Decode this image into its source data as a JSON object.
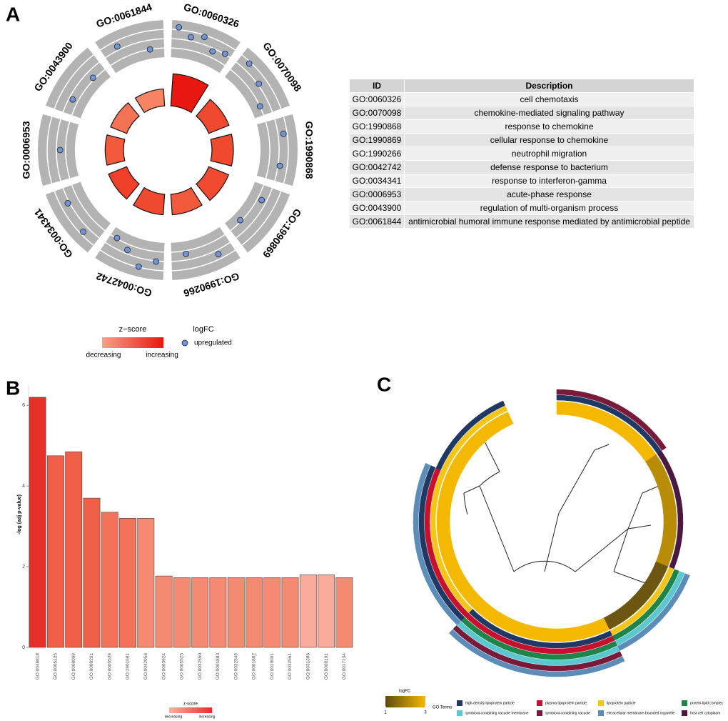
{
  "panels": [
    "A",
    "B",
    "C"
  ],
  "chart_data": [
    {
      "type": "gocircle",
      "terms": [
        "GO:0060326",
        "GO:0070098",
        "GO:1990868",
        "GO:1990869",
        "GO:1990266",
        "GO:0042742",
        "GO:0034341",
        "GO:0006953",
        "GO:0043900",
        "GO:0061844"
      ],
      "values": [
        7.2,
        4.9,
        4.8,
        4.8,
        4.6,
        4.6,
        4.4,
        4.1,
        3.9,
        3.8
      ],
      "ylim": [
        0,
        8
      ],
      "colors": [
        "#e8170f",
        "#f0492f",
        "#f0492f",
        "#f24a30",
        "#f35a3c",
        "#ef4a2f",
        "#f0402a",
        "#f35a3c",
        "#f47355",
        "#f88466"
      ],
      "logfc": [
        [
          4.9,
          3.6,
          4.2,
          2.5,
          3.1
        ],
        [
          4.2,
          3.2,
          1.5
        ],
        [
          3.9,
          3.3
        ],
        [
          2.2,
          1.3
        ],
        [
          3.7,
          2.0
        ],
        [
          3.1,
          4.4,
          2.4,
          1.4
        ],
        [
          4.0,
          3.3
        ],
        [
          2.4
        ],
        [
          2.4,
          1.8
        ],
        [
          3.6,
          1.5
        ]
      ],
      "logfc_lim": [
        0,
        6
      ],
      "legend": {
        "zscore_title": "z−score",
        "zscore_low": "decreasing",
        "zscore_high": "increasing",
        "zscore_colors": [
          "#f8a08a",
          "#e8170f"
        ],
        "logfc_title": "logFC",
        "logfc_label": "upregulated",
        "point_color": "#6f95d8"
      }
    },
    {
      "type": "bar",
      "categories": [
        "GO:0048818",
        "GO:0005125",
        "GO:0008009",
        "GO:0008201",
        "GO:0005539",
        "GO:1901681",
        "GO:0042056",
        "GO:0003924",
        "GO:0005525",
        "GO:0032550",
        "GO:0001883",
        "GO:0032549",
        "GO:0001882",
        "GO:0019001",
        "GO:0032561",
        "GO:0031386",
        "GO:0008191",
        "GO:0017134"
      ],
      "values": [
        6.2,
        4.75,
        4.85,
        3.7,
        3.35,
        3.2,
        3.2,
        1.77,
        1.73,
        1.73,
        1.73,
        1.73,
        1.73,
        1.73,
        1.73,
        1.8,
        1.8,
        1.73
      ],
      "colors": [
        "#e8302a",
        "#f06048",
        "#f06048",
        "#f06048",
        "#f2725a",
        "#f2725a",
        "#f58a72",
        "#f58a72",
        "#f58a72",
        "#f58a72",
        "#f58a72",
        "#f58a72",
        "#f58a72",
        "#f58a72",
        "#f58a72",
        "#f8ab9a",
        "#f8ab9a",
        "#f58a72"
      ],
      "ylim": [
        0,
        6.5
      ],
      "yticks": [
        0,
        2,
        4,
        6
      ],
      "ylabel": "-log (adj p-value)",
      "legend": {
        "title": "z-score",
        "low": "decreasing",
        "high": "increasing",
        "colors": [
          "#f8b0a0",
          "#ee2b2b"
        ]
      }
    },
    {
      "type": "gocluster",
      "logfc": [
        3,
        3,
        3,
        3,
        2.2,
        2.2,
        2.2,
        2.2,
        1.2,
        1.2,
        1.2,
        3,
        3,
        3,
        3,
        3,
        3,
        3,
        3,
        3,
        3,
        3,
        3,
        3
      ],
      "membership": [
        [
          0,
          5
        ],
        [
          0,
          5
        ],
        [
          0,
          5
        ],
        [
          0,
          5
        ],
        [
          7
        ],
        [
          7
        ],
        [
          7
        ],
        [
          7
        ],
        [
          2,
          3,
          4,
          6
        ],
        [
          2,
          3,
          4,
          6
        ],
        [
          2,
          3,
          4,
          6
        ],
        [
          0,
          1,
          3,
          4,
          5,
          6
        ],
        [
          0,
          1,
          3,
          4,
          5,
          6
        ],
        [
          0,
          1,
          3,
          4,
          5,
          6
        ],
        [
          0,
          1,
          3,
          4,
          5,
          6
        ],
        [
          0,
          1,
          3,
          4,
          5,
          6
        ],
        [
          2,
          1,
          0,
          6
        ],
        [
          2,
          1,
          0,
          6
        ],
        [
          2,
          1,
          0,
          6
        ],
        [
          2,
          1,
          0,
          6
        ],
        [
          2,
          1,
          0,
          6
        ],
        [
          2,
          0
        ],
        [
          2,
          0
        ],
        [
          2,
          0
        ]
      ],
      "logfc_lim": [
        1,
        3
      ],
      "logfc_ticks": [
        1,
        3
      ],
      "logfc_colors": [
        "#5e4a14",
        "#f5b800"
      ],
      "logfc_title": "logFC",
      "terms_title": "GO Terms",
      "terms": [
        {
          "name": "high-density lipoprotein particle",
          "color": "#1f3864"
        },
        {
          "name": "plasma lipoprotein particle",
          "color": "#c8102e"
        },
        {
          "name": "lipoprotein particle",
          "color": "#f5c518"
        },
        {
          "name": "protein-lipid complex",
          "color": "#1e8449"
        },
        {
          "name": "symbiont-containing vacuole membrane",
          "color": "#5bc8d0"
        },
        {
          "name": "symbiont-containing vacuole",
          "color": "#7a1a3a"
        },
        {
          "name": "extracellular membrane-bounded organelle",
          "color": "#5b8db8"
        },
        {
          "name": "host cell cytoplasm",
          "color": "#4a1942"
        }
      ]
    }
  ],
  "table": {
    "header": [
      "ID",
      "Description"
    ],
    "rows": [
      [
        "GO:0060326",
        "cell chemotaxis"
      ],
      [
        "GO:0070098",
        "chemokine-mediated signaling pathway"
      ],
      [
        "GO:1990868",
        "response to chemokine"
      ],
      [
        "GO:1990869",
        "cellular response to chemokine"
      ],
      [
        "GO:1990266",
        "neutrophil migration"
      ],
      [
        "GO:0042742",
        "defense response to bacterium"
      ],
      [
        "GO:0034341",
        "response to interferon-gamma"
      ],
      [
        "GO:0006953",
        "acute-phase response"
      ],
      [
        "GO:0043900",
        "regulation of multi-organism process"
      ],
      [
        "GO:0061844",
        "antimicrobial humoral immune response mediated by antimicrobial peptide"
      ]
    ]
  }
}
